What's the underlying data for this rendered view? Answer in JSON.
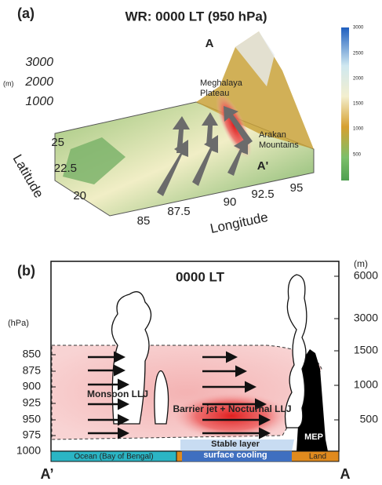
{
  "panel_a": {
    "label": "(a)",
    "title": "WR: 0000 LT (950 hPa)",
    "point_a": "A",
    "point_a_prime": "A'",
    "height_unit": "(m)",
    "height_ticks": [
      "3000",
      "2000",
      "1000"
    ],
    "lat_ticks": [
      "25",
      "22.5",
      "20"
    ],
    "lat_label": "Latitude",
    "lon_ticks": [
      "85",
      "87.5",
      "90",
      "92.5",
      "95"
    ],
    "lon_label": "Longitude",
    "meghalaya": [
      "Meghalaya",
      "Plateau"
    ],
    "arakan": [
      "Arakan",
      "Mountains"
    ],
    "colorbar_ticks": [
      "3000",
      "2500",
      "2000",
      "1500",
      "1000",
      "500"
    ]
  },
  "panel_b": {
    "label": "(b)",
    "title": "0000 LT",
    "pressure_unit": "(hPa)",
    "pressure_ticks": [
      "850",
      "875",
      "900",
      "925",
      "950",
      "975",
      "1000"
    ],
    "height_unit": "(m)",
    "height_ticks": [
      "6000",
      "3000",
      "1500",
      "1000",
      "500"
    ],
    "monsoon_llj": "Monsoon LLJ",
    "barrier_jet": "Barrier jet + Nocturnal LLJ",
    "stable_layer": "Stable layer",
    "surface_cooling": "surface cooling",
    "mep": "MEP",
    "ocean": "Ocean (Bay of Bengal)",
    "land": "Land",
    "left_end": "A’",
    "right_end": "A"
  }
}
